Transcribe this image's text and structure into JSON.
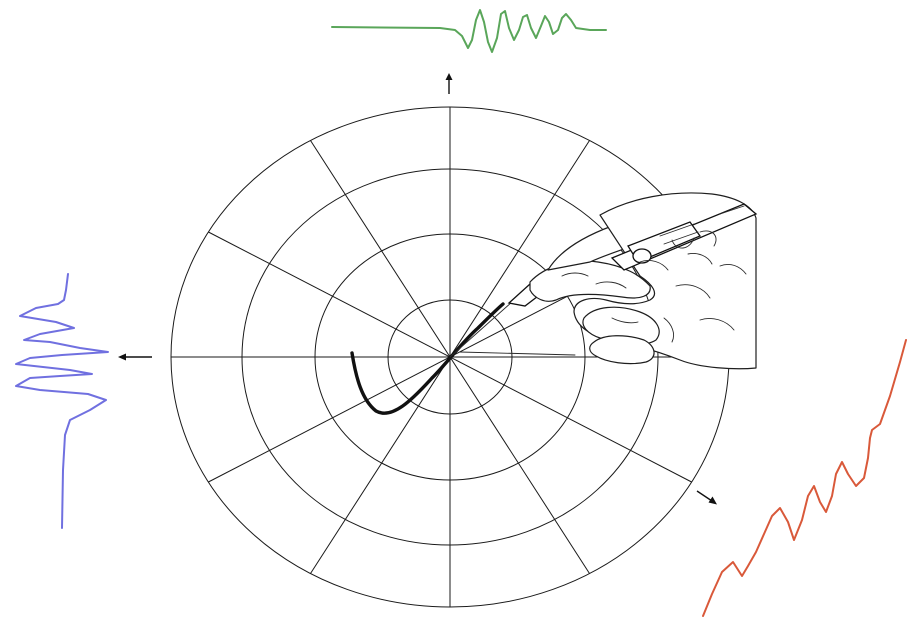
{
  "figure": {
    "trace": {
      "color": "#111111"
    },
    "signals": {
      "top": {
        "color": "#5aa65a",
        "direction": "up"
      },
      "left": {
        "color": "#7070e0",
        "direction": "left"
      },
      "bottom_right": {
        "color": "#d9593a",
        "direction": "down-right"
      }
    },
    "icons": [
      "up-arrow-icon",
      "left-arrow-icon",
      "down-right-arrow-icon",
      "hand-with-pen-icon"
    ]
  }
}
